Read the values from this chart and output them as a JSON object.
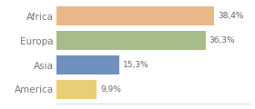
{
  "categories": [
    "America",
    "Asia",
    "Europa",
    "Africa"
  ],
  "values": [
    9.9,
    15.3,
    36.3,
    38.4
  ],
  "labels": [
    "9,9%",
    "15,3%",
    "36,3%",
    "38,4%"
  ],
  "bar_colors": [
    "#e8ce78",
    "#7090c0",
    "#a8bb8a",
    "#e8b88a"
  ],
  "background_color": "#ffffff",
  "xlim": [
    0,
    47
  ],
  "bar_height": 0.78,
  "label_fontsize": 6.5,
  "tick_fontsize": 7.5
}
